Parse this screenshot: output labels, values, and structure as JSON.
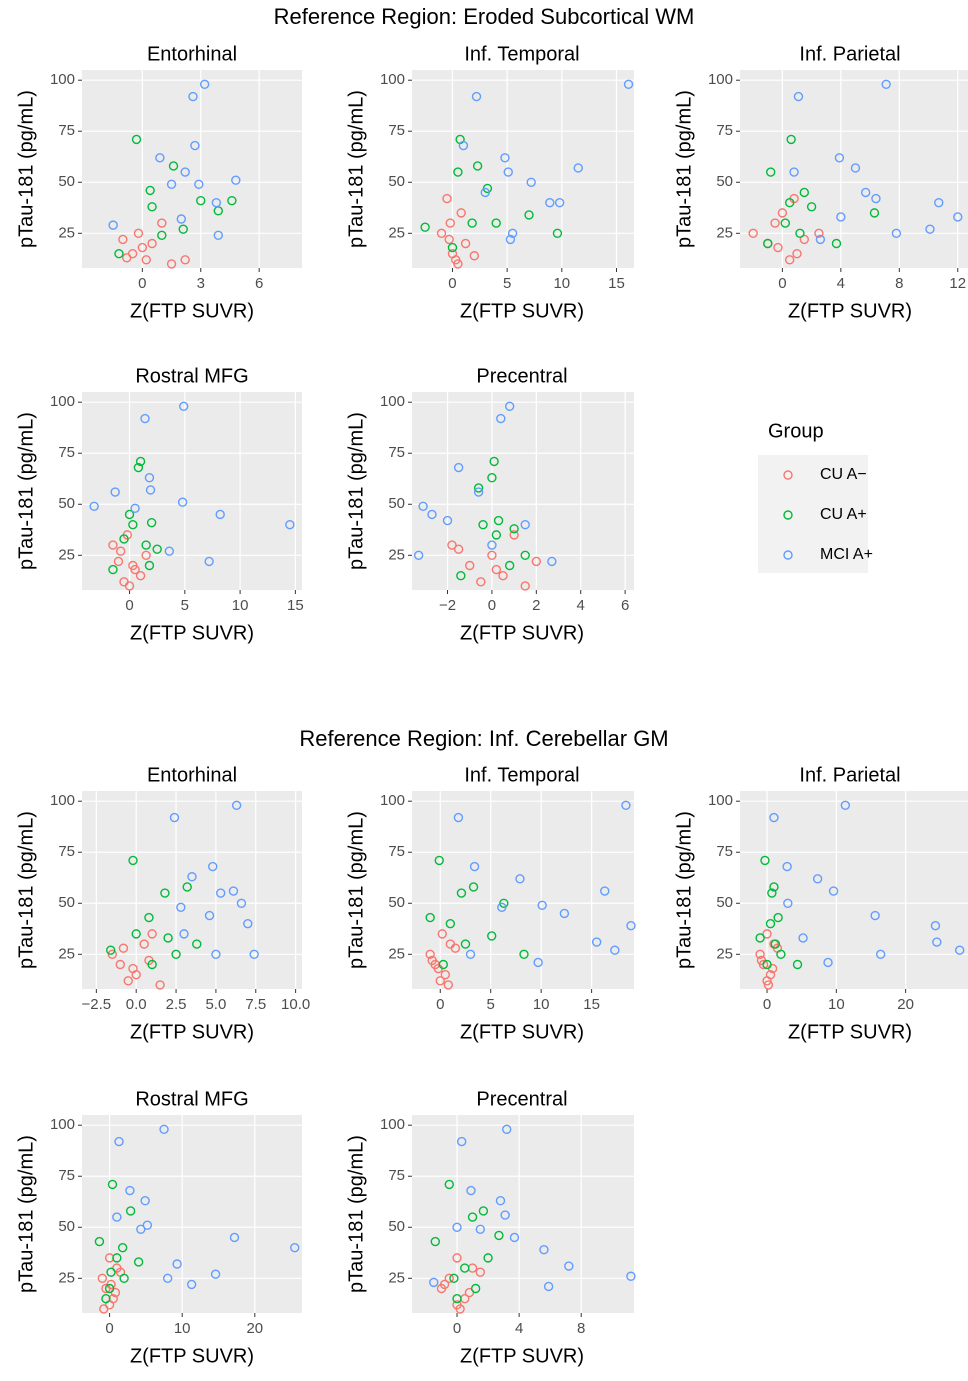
{
  "sections": [
    "Reference Region: Eroded Subcortical WM",
    "Reference Region: Inf. Cerebellar GM"
  ],
  "legend_title": "Group",
  "chart_data": [
    {
      "type": "scatter",
      "title": "Entorhinal",
      "xlabel": "Z(FTP SUVR)",
      "ylabel": "pTau-181 (pg/mL)",
      "xlim": [
        -3.1,
        8.2
      ],
      "xticks": [
        0,
        3,
        6
      ],
      "ylim": [
        8,
        105
      ],
      "yticks": [
        25,
        50,
        75,
        100
      ],
      "grid": true,
      "series": [
        {
          "name": "CU A−",
          "color": "#F8766D",
          "x": [
            -0.8,
            -0.5,
            -0.2,
            0.2,
            0.5,
            1.0,
            1.5,
            2.2,
            -1.0,
            0.0
          ],
          "y": [
            13,
            15,
            25,
            12,
            20,
            30,
            10,
            12,
            22,
            18
          ]
        },
        {
          "name": "CU A+",
          "color": "#00BA38",
          "x": [
            -0.3,
            0.4,
            0.5,
            1.6,
            2.1,
            3.0,
            3.9,
            4.6,
            1.0,
            -1.2
          ],
          "y": [
            71,
            46,
            38,
            58,
            27,
            41,
            36,
            41,
            24,
            15
          ]
        },
        {
          "name": "MCI A+",
          "color": "#619CFF",
          "x": [
            3.2,
            2.6,
            2.7,
            2.9,
            1.5,
            2.2,
            4.8,
            3.8,
            -1.5,
            0.9,
            2.0,
            3.9
          ],
          "y": [
            98,
            92,
            68,
            49,
            49,
            55,
            51,
            40,
            29,
            62,
            32,
            24
          ]
        }
      ]
    },
    {
      "type": "scatter",
      "title": "Inf. Temporal",
      "xlabel": "Z(FTP SUVR)",
      "ylabel": "pTau-181 (pg/mL)",
      "xlim": [
        -3.7,
        16.6
      ],
      "xticks": [
        0,
        5,
        10,
        15
      ],
      "ylim": [
        8,
        105
      ],
      "yticks": [
        25,
        50,
        75,
        100
      ],
      "grid": true,
      "series": [
        {
          "name": "CU A−",
          "color": "#F8766D",
          "x": [
            -0.5,
            0,
            0.3,
            -1,
            1.2,
            -0.2,
            0.8,
            2.0,
            -0.3,
            0.5
          ],
          "y": [
            42,
            15,
            12,
            25,
            20,
            30,
            35,
            14,
            22,
            10
          ]
        },
        {
          "name": "CU A+",
          "color": "#00BA38",
          "x": [
            0.7,
            0.5,
            2.3,
            3.2,
            9.6,
            7.0,
            1.8,
            -2.5,
            4.0,
            0.0
          ],
          "y": [
            71,
            55,
            58,
            47,
            25,
            34,
            30,
            28,
            30,
            18
          ]
        },
        {
          "name": "MCI A+",
          "color": "#619CFF",
          "x": [
            16.1,
            2.2,
            4.8,
            5.1,
            11.5,
            7.2,
            8.9,
            9.8,
            5.5,
            1.0,
            3.0,
            5.3
          ],
          "y": [
            98,
            92,
            62,
            55,
            57,
            50,
            40,
            40,
            25,
            68,
            45,
            22
          ]
        }
      ]
    },
    {
      "type": "scatter",
      "title": "Inf. Parietal",
      "xlabel": "Z(FTP SUVR)",
      "ylabel": "pTau-181 (pg/mL)",
      "xlim": [
        -2.9,
        12.7
      ],
      "xticks": [
        0,
        4,
        8,
        12
      ],
      "ylim": [
        8,
        105
      ],
      "yticks": [
        25,
        50,
        75,
        100
      ],
      "grid": true,
      "series": [
        {
          "name": "CU A−",
          "color": "#F8766D",
          "x": [
            -2,
            -1,
            0,
            0.5,
            1,
            -0.5,
            2.5,
            0.8,
            -0.3,
            1.5
          ],
          "y": [
            25,
            20,
            35,
            12,
            15,
            30,
            25,
            42,
            18,
            22
          ]
        },
        {
          "name": "CU A+",
          "color": "#00BA38",
          "x": [
            0.6,
            -0.8,
            1.5,
            2.0,
            3.7,
            6.3,
            0.2,
            -1,
            1.2,
            0.5
          ],
          "y": [
            71,
            55,
            45,
            38,
            20,
            35,
            30,
            20,
            25,
            40
          ]
        },
        {
          "name": "MCI A+",
          "color": "#619CFF",
          "x": [
            7.1,
            1.1,
            3.9,
            5.0,
            5.7,
            6.4,
            10.7,
            12.0,
            10.1,
            7.8,
            4.0,
            2.6,
            0.8
          ],
          "y": [
            98,
            92,
            62,
            57,
            45,
            42,
            40,
            33,
            27,
            25,
            33,
            22,
            55
          ]
        }
      ]
    },
    {
      "type": "scatter",
      "title": "Rostral MFG",
      "xlabel": "Z(FTP SUVR)",
      "ylabel": "pTau-181 (pg/mL)",
      "xlim": [
        -4.3,
        15.6
      ],
      "xticks": [
        0,
        5,
        10,
        15
      ],
      "ylim": [
        8,
        105
      ],
      "yticks": [
        25,
        50,
        75,
        100
      ],
      "grid": true,
      "series": [
        {
          "name": "CU A−",
          "color": "#F8766D",
          "x": [
            -1.5,
            -1,
            -0.5,
            0,
            0.5,
            1,
            -0.8,
            0.3,
            1.5,
            -0.2
          ],
          "y": [
            30,
            22,
            12,
            10,
            18,
            15,
            27,
            20,
            25,
            35
          ]
        },
        {
          "name": "CU A+",
          "color": "#00BA38",
          "x": [
            1.0,
            0.8,
            2.0,
            1.5,
            0.3,
            -1.5,
            2.5,
            0.0,
            1.8,
            -0.5
          ],
          "y": [
            71,
            68,
            41,
            30,
            40,
            18,
            28,
            45,
            20,
            33
          ]
        },
        {
          "name": "MCI A+",
          "color": "#619CFF",
          "x": [
            4.9,
            1.4,
            1.8,
            1.9,
            -1.3,
            -3.2,
            4.8,
            8.2,
            14.5,
            7.2,
            3.6,
            0.5
          ],
          "y": [
            98,
            92,
            63,
            57,
            56,
            49,
            51,
            45,
            40,
            22,
            27,
            48
          ]
        }
      ]
    },
    {
      "type": "scatter",
      "title": "Precentral",
      "xlabel": "Z(FTP SUVR)",
      "ylabel": "pTau-181 (pg/mL)",
      "xlim": [
        -3.6,
        6.4
      ],
      "xticks": [
        {
          "value": -2,
          "label": "−2"
        },
        0,
        2,
        4,
        6
      ],
      "ylim": [
        8,
        105
      ],
      "yticks": [
        25,
        50,
        75,
        100
      ],
      "grid": true,
      "series": [
        {
          "name": "CU A−",
          "color": "#F8766D",
          "x": [
            -1.8,
            -1,
            -0.5,
            0,
            0.5,
            1.5,
            2.0,
            -1.5,
            0.2,
            1.0
          ],
          "y": [
            30,
            20,
            12,
            25,
            15,
            10,
            22,
            28,
            18,
            35
          ]
        },
        {
          "name": "CU A+",
          "color": "#00BA38",
          "x": [
            0.1,
            0.0,
            -0.6,
            0.3,
            -0.4,
            1.0,
            0.2,
            -1.4,
            0.8,
            1.5
          ],
          "y": [
            71,
            63,
            58,
            42,
            40,
            38,
            35,
            15,
            20,
            25
          ]
        },
        {
          "name": "MCI A+",
          "color": "#619CFF",
          "x": [
            0.8,
            0.4,
            -1.5,
            -0.6,
            -3.1,
            -3.3,
            -2.7,
            2.7,
            1.5,
            -2.0,
            0.0
          ],
          "y": [
            98,
            92,
            68,
            56,
            49,
            25,
            45,
            22,
            40,
            42,
            30
          ]
        }
      ]
    },
    {
      "type": "scatter",
      "title": "Entorhinal",
      "xlabel": "Z(FTP SUVR)",
      "ylabel": "pTau-181 (pg/mL)",
      "xlim": [
        -3.4,
        10.4
      ],
      "xticks": [
        {
          "value": -2.5,
          "label": "−2.5"
        },
        {
          "value": 0,
          "label": "0.0"
        },
        {
          "value": 2.5,
          "label": "2.5"
        },
        {
          "value": 5,
          "label": "5.0"
        },
        {
          "value": 7.5,
          "label": "7.5"
        },
        {
          "value": 10,
          "label": "10.0"
        }
      ],
      "ylim": [
        8,
        105
      ],
      "yticks": [
        25,
        50,
        75,
        100
      ],
      "grid": true,
      "series": [
        {
          "name": "CU A−",
          "color": "#F8766D",
          "x": [
            -1.5,
            -1,
            -0.5,
            0,
            0.5,
            1.5,
            -0.2,
            0.8,
            -0.8,
            1.0
          ],
          "y": [
            25,
            20,
            12,
            15,
            30,
            10,
            18,
            22,
            28,
            35
          ]
        },
        {
          "name": "CU A+",
          "color": "#00BA38",
          "x": [
            -0.2,
            3.2,
            1.8,
            0.8,
            -1.6,
            0.0,
            2.5,
            3.8,
            1.0,
            2.0
          ],
          "y": [
            71,
            58,
            55,
            43,
            27,
            35,
            25,
            30,
            20,
            33
          ]
        },
        {
          "name": "MCI A+",
          "color": "#619CFF",
          "x": [
            6.3,
            2.4,
            4.8,
            3.5,
            5.3,
            6.1,
            6.6,
            7.0,
            7.4,
            4.6,
            2.8,
            5.0,
            3.0
          ],
          "y": [
            98,
            92,
            68,
            63,
            55,
            56,
            50,
            40,
            25,
            44,
            48,
            25,
            35
          ]
        }
      ]
    },
    {
      "type": "scatter",
      "title": "Inf. Temporal",
      "xlabel": "Z(FTP SUVR)",
      "ylabel": "pTau-181 (pg/mL)",
      "xlim": [
        -2.8,
        19.2
      ],
      "xticks": [
        0,
        5,
        10,
        15
      ],
      "ylim": [
        8,
        105
      ],
      "yticks": [
        25,
        50,
        75,
        100
      ],
      "grid": true,
      "series": [
        {
          "name": "CU A−",
          "color": "#F8766D",
          "x": [
            -1.0,
            -0.5,
            0,
            0.5,
            1.0,
            -0.2,
            0.8,
            -0.8,
            1.5,
            0.2
          ],
          "y": [
            25,
            20,
            12,
            15,
            30,
            18,
            10,
            22,
            28,
            35
          ]
        },
        {
          "name": "CU A+",
          "color": "#00BA38",
          "x": [
            -0.1,
            2.1,
            3.3,
            5.1,
            6.3,
            8.3,
            -1.0,
            1.0,
            0.3,
            2.5
          ],
          "y": [
            71,
            55,
            58,
            34,
            50,
            25,
            43,
            40,
            20,
            30
          ]
        },
        {
          "name": "MCI A+",
          "color": "#619CFF",
          "x": [
            18.4,
            1.8,
            3.4,
            7.9,
            6.1,
            10.1,
            12.3,
            16.3,
            18.9,
            15.5,
            17.3,
            9.7,
            3.0
          ],
          "y": [
            98,
            92,
            68,
            62,
            48,
            49,
            45,
            56,
            39,
            31,
            27,
            21,
            25
          ]
        }
      ]
    },
    {
      "type": "scatter",
      "title": "Inf. Parietal",
      "xlabel": "Z(FTP SUVR)",
      "ylabel": "pTau-181 (pg/mL)",
      "xlim": [
        -3.9,
        29
      ],
      "xticks": [
        0,
        10,
        20
      ],
      "ylim": [
        8,
        105
      ],
      "yticks": [
        25,
        50,
        75,
        100
      ],
      "grid": true,
      "series": [
        {
          "name": "CU A−",
          "color": "#F8766D",
          "x": [
            -1,
            -0.5,
            0,
            0.5,
            1,
            0.2,
            -0.8,
            1.5,
            0.0,
            0.8
          ],
          "y": [
            25,
            20,
            12,
            15,
            30,
            10,
            22,
            28,
            35,
            18
          ]
        },
        {
          "name": "CU A+",
          "color": "#00BA38",
          "x": [
            -0.3,
            1.0,
            0.7,
            1.6,
            4.4,
            -1.0,
            0.5,
            2.0,
            0.0,
            1.2
          ],
          "y": [
            71,
            58,
            55,
            43,
            20,
            33,
            40,
            25,
            20,
            30
          ]
        },
        {
          "name": "MCI A+",
          "color": "#619CFF",
          "x": [
            11.3,
            1.0,
            2.9,
            7.3,
            9.6,
            15.6,
            24.3,
            24.5,
            16.4,
            8.8,
            27.8,
            5.2,
            3.0
          ],
          "y": [
            98,
            92,
            68,
            62,
            56,
            44,
            39,
            31,
            25,
            21,
            27,
            33,
            50
          ]
        }
      ]
    },
    {
      "type": "scatter",
      "title": "Rostral MFG",
      "xlabel": "Z(FTP SUVR)",
      "ylabel": "pTau-181 (pg/mL)",
      "xlim": [
        -3.8,
        26.5
      ],
      "xticks": [
        0,
        10,
        20
      ],
      "ylim": [
        8,
        105
      ],
      "yticks": [
        25,
        50,
        75,
        100
      ],
      "grid": true,
      "series": [
        {
          "name": "CU A−",
          "color": "#F8766D",
          "x": [
            -1,
            -0.5,
            0,
            0.5,
            1,
            -0.8,
            0.2,
            1.5,
            0.0,
            0.8
          ],
          "y": [
            25,
            20,
            12,
            15,
            30,
            10,
            22,
            28,
            35,
            18
          ]
        },
        {
          "name": "CU A+",
          "color": "#00BA38",
          "x": [
            0.4,
            2.9,
            -1.4,
            1.8,
            0.2,
            1.0,
            4.0,
            0.0,
            2.0,
            -0.5
          ],
          "y": [
            71,
            58,
            43,
            40,
            28,
            35,
            33,
            20,
            25,
            15
          ]
        },
        {
          "name": "MCI A+",
          "color": "#619CFF",
          "x": [
            7.5,
            1.3,
            2.8,
            4.9,
            5.2,
            4.3,
            17.2,
            25.5,
            9.3,
            11.3,
            14.6,
            8.0,
            1.0
          ],
          "y": [
            98,
            92,
            68,
            63,
            51,
            49,
            45,
            40,
            32,
            22,
            27,
            25,
            55
          ]
        }
      ]
    },
    {
      "type": "scatter",
      "title": "Precentral",
      "xlabel": "Z(FTP SUVR)",
      "ylabel": "pTau-181 (pg/mL)",
      "xlim": [
        -2.9,
        11.4
      ],
      "xticks": [
        0,
        4,
        8
      ],
      "ylim": [
        8,
        105
      ],
      "yticks": [
        25,
        50,
        75,
        100
      ],
      "grid": true,
      "series": [
        {
          "name": "CU A−",
          "color": "#F8766D",
          "x": [
            -1,
            -0.5,
            0,
            0.5,
            1,
            -0.8,
            0.2,
            1.5,
            0.0,
            0.8
          ],
          "y": [
            20,
            25,
            12,
            15,
            30,
            22,
            10,
            28,
            35,
            18
          ]
        },
        {
          "name": "CU A+",
          "color": "#00BA38",
          "x": [
            -0.5,
            1.0,
            1.7,
            -1.4,
            2.7,
            0.5,
            -0.2,
            1.2,
            0.0,
            2.0
          ],
          "y": [
            71,
            55,
            58,
            43,
            46,
            30,
            25,
            20,
            15,
            35
          ]
        },
        {
          "name": "MCI A+",
          "color": "#619CFF",
          "x": [
            3.2,
            0.3,
            2.8,
            3.1,
            3.7,
            5.6,
            5.9,
            7.2,
            11.2,
            0.9,
            0.0,
            -1.5,
            1.5
          ],
          "y": [
            98,
            92,
            63,
            56,
            45,
            39,
            21,
            31,
            26,
            68,
            50,
            23,
            49
          ]
        }
      ]
    }
  ]
}
